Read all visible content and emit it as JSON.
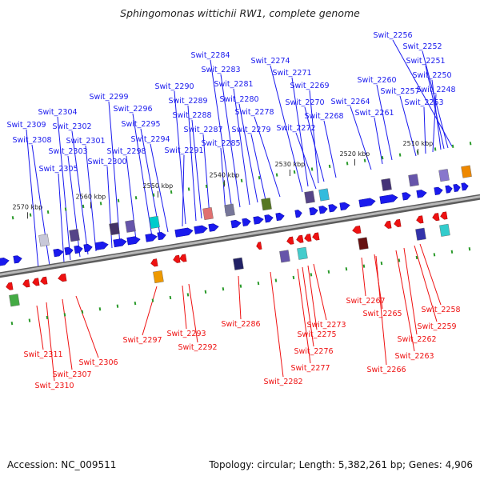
{
  "title": "Sphingomonas wittichii RW1, complete genome",
  "footer": {
    "accession": "Accession: NC_009511",
    "summary": "Topology: circular; Length: 5,382,261 bp; Genes: 4,906"
  },
  "colors": {
    "forward": "#1a1aee",
    "reverse": "#ee1111",
    "backbone": "#8a8a8a"
  },
  "ticks": [
    "2510 kbp",
    "2520 kbp",
    "2530 kbp",
    "2540 kbp",
    "2550 kbp",
    "2560 kbp",
    "2570 kbp"
  ],
  "top_labels": [
    "Swit_2256",
    "Swit_2252",
    "Swit_2251",
    "Swit_2250",
    "Swit_2248",
    "Swit_2253",
    "Swit_2257",
    "Swit_2260",
    "Swit_2261",
    "Swit_2264",
    "Swit_2268",
    "Swit_2270",
    "Swit_2269",
    "Swit_2271",
    "Swit_2272",
    "Swit_2274",
    "Swit_2278",
    "Swit_2279",
    "Swit_2280",
    "Swit_2281",
    "Swit_2283",
    "Swit_2284",
    "Swit_2285",
    "Swit_2287",
    "Swit_2288",
    "Swit_2289",
    "Swit_2290",
    "Swit_2291",
    "Swit_2294",
    "Swit_2295",
    "Swit_2296",
    "Swit_2298",
    "Swit_2299",
    "Swit_2300",
    "Swit_2301",
    "Swit_2302",
    "Swit_2303",
    "Swit_2304",
    "Swit_2305",
    "Swit_2308",
    "Swit_2309"
  ],
  "bottom_labels": [
    "Swit_2258",
    "Swit_2259",
    "Swit_2262",
    "Swit_2263",
    "Swit_2265",
    "Swit_2266",
    "Swit_2267",
    "Swit_2273",
    "Swit_2275",
    "Swit_2276",
    "Swit_2277",
    "Swit_2282",
    "Swit_2286",
    "Swit_2292",
    "Swit_2293",
    "Swit_2297",
    "Swit_2306",
    "Swit_2307",
    "Swit_2310",
    "Swit_2311"
  ]
}
